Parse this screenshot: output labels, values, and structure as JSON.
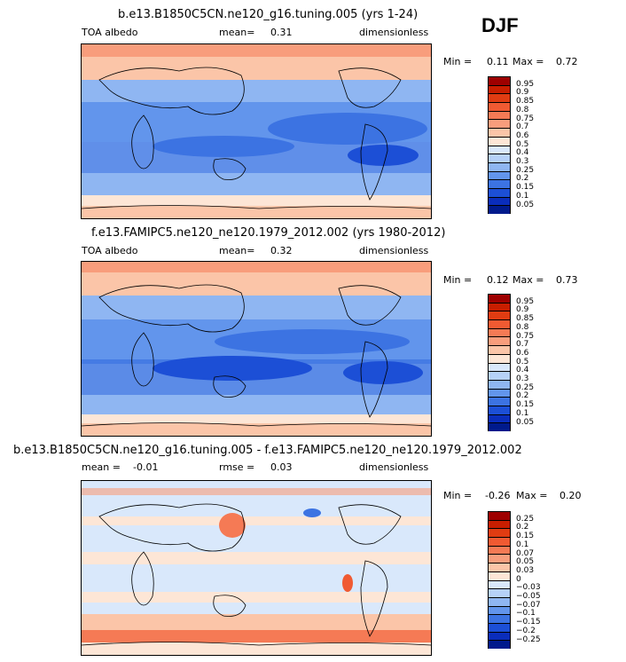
{
  "season": "DJF",
  "panels": [
    {
      "title": "b.e13.B1850C5CN.ne120_g16.tuning.005 (yrs 1-24)",
      "field": "TOA albedo",
      "mean_label": "mean=",
      "mean_value": "0.31",
      "units": "dimensionless",
      "min_label": "Min =",
      "min_value": "0.11",
      "max_label": "Max =",
      "max_value": "0.72",
      "levels": [
        "0.95",
        "0.9",
        "0.85",
        "0.8",
        "0.75",
        "0.7",
        "0.6",
        "0.5",
        "0.4",
        "0.3",
        "0.25",
        "0.2",
        "0.15",
        "0.1",
        "0.05"
      ],
      "colors": [
        "#9e0000",
        "#c81e00",
        "#e03c12",
        "#f05a32",
        "#f57a55",
        "#f89d7c",
        "#fbc5a8",
        "#fde6d6",
        "#d9e8fb",
        "#b6d1f8",
        "#8fb6f2",
        "#6295ec",
        "#3c73e2",
        "#1c4fd6",
        "#0a2dbb",
        "#001a8c"
      ]
    },
    {
      "title": "f.e13.FAMIPC5.ne120_ne120.1979_2012.002 (yrs 1980-2012)",
      "field": "TOA albedo",
      "mean_label": "mean=",
      "mean_value": "0.32",
      "units": "dimensionless",
      "min_label": "Min =",
      "min_value": "0.12",
      "max_label": "Max =",
      "max_value": "0.73",
      "levels": [
        "0.95",
        "0.9",
        "0.85",
        "0.8",
        "0.75",
        "0.7",
        "0.6",
        "0.5",
        "0.4",
        "0.3",
        "0.25",
        "0.2",
        "0.15",
        "0.1",
        "0.05"
      ],
      "colors": [
        "#9e0000",
        "#c81e00",
        "#e03c12",
        "#f05a32",
        "#f57a55",
        "#f89d7c",
        "#fbc5a8",
        "#fde6d6",
        "#d9e8fb",
        "#b6d1f8",
        "#8fb6f2",
        "#6295ec",
        "#3c73e2",
        "#1c4fd6",
        "#0a2dbb",
        "#001a8c"
      ]
    },
    {
      "title": "b.e13.B1850C5CN.ne120_g16.tuning.005 - f.e13.FAMIPC5.ne120_ne120.1979_2012.002",
      "mean_label": "mean =",
      "mean_value": "-0.01",
      "rmse_label": "rmse =",
      "rmse_value": "0.03",
      "units": "dimensionless",
      "min_label": "Min =",
      "min_value": "-0.26",
      "max_label": "Max =",
      "max_value": "0.20",
      "levels": [
        "0.25",
        "0.2",
        "0.15",
        "0.1",
        "0.07",
        "0.05",
        "0.03",
        "0",
        "-0.03",
        "-0.05",
        "-0.07",
        "-0.1",
        "-0.15",
        "-0.2",
        "-0.25"
      ],
      "colors": [
        "#9e0000",
        "#c81e00",
        "#e03c12",
        "#f05a32",
        "#f57a55",
        "#f89d7c",
        "#fbc5a8",
        "#fde6d6",
        "#d9e8fb",
        "#b6d1f8",
        "#8fb6f2",
        "#6295ec",
        "#3c73e2",
        "#1c4fd6",
        "#0a2dbb",
        "#001a8c"
      ]
    }
  ]
}
